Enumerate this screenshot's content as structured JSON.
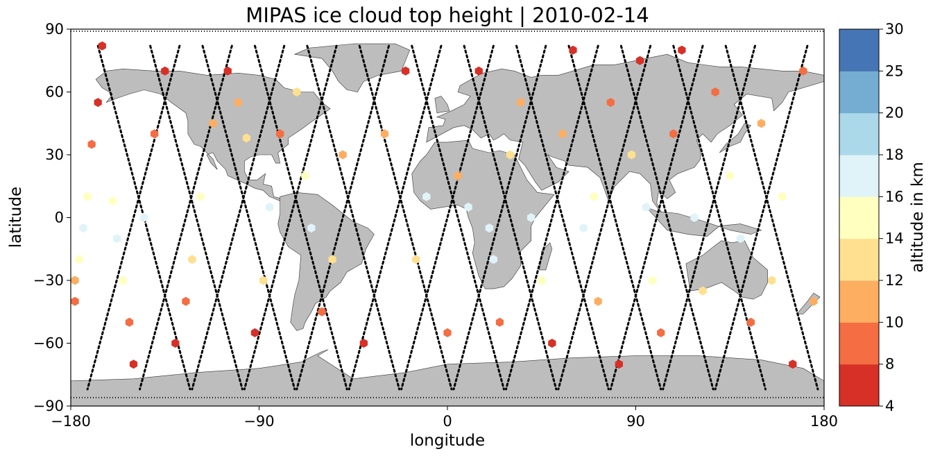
{
  "chart_data": {
    "type": "scatter",
    "title": "MIPAS ice cloud top height | 2010-02-14",
    "xlabel": "longitude",
    "ylabel": "latitude",
    "xlim": [
      -180,
      180
    ],
    "ylim": [
      -90,
      90
    ],
    "xticks": [
      -180,
      -90,
      0,
      90,
      180
    ],
    "yticks": [
      90,
      60,
      30,
      0,
      -30,
      -60,
      -90
    ],
    "xtick_labels": [
      "−180",
      "−90",
      "0",
      "90",
      "180"
    ],
    "ytick_labels": [
      "90",
      "60",
      "30",
      "0",
      "−30",
      "−60",
      "−90"
    ],
    "grid": false,
    "background_map": "world coastlines, land in grey",
    "land_color": "#bdbdbd",
    "track_marker_color": "#000000",
    "colorbar": {
      "label": "altitude in km",
      "boundaries": [
        4,
        8,
        10,
        12,
        14,
        16,
        18,
        20,
        25,
        30
      ],
      "tick_labels": [
        "30",
        "25",
        "20",
        "18",
        "16",
        "14",
        "12",
        "10",
        "8",
        "4"
      ],
      "colors": [
        "#a50026",
        "#d73027",
        "#f46d43",
        "#fdae61",
        "#fee090",
        "#ffffbf",
        "#e0f3f8",
        "#abd9e9",
        "#74add1",
        "#4575b4",
        "#313695"
      ]
    },
    "tracks": [
      {
        "lon_north": -128,
        "lon_south": -172,
        "descending": true
      },
      {
        "lon_north": -103,
        "lon_south": -147,
        "descending": true
      },
      {
        "lon_north": -78,
        "lon_south": -122,
        "descending": true
      },
      {
        "lon_north": -53,
        "lon_south": -97,
        "descending": true
      },
      {
        "lon_north": -28,
        "lon_south": -72,
        "descending": true
      },
      {
        "lon_north": -3,
        "lon_south": -47,
        "descending": true
      },
      {
        "lon_north": 22,
        "lon_south": -22,
        "descending": true
      },
      {
        "lon_north": 47,
        "lon_south": 3,
        "descending": true
      },
      {
        "lon_north": 72,
        "lon_south": 28,
        "descending": true
      },
      {
        "lon_north": 97,
        "lon_south": 53,
        "descending": true
      },
      {
        "lon_north": 122,
        "lon_south": 78,
        "descending": true
      },
      {
        "lon_north": 147,
        "lon_south": 103,
        "descending": true
      },
      {
        "lon_north": 172,
        "lon_south": 128,
        "descending": true
      },
      {
        "lon_north": -167,
        "lon_south": -123,
        "descending": false
      },
      {
        "lon_north": -142,
        "lon_south": -98,
        "descending": false
      },
      {
        "lon_north": -117,
        "lon_south": -73,
        "descending": false
      },
      {
        "lon_north": -92,
        "lon_south": -48,
        "descending": false
      },
      {
        "lon_north": -67,
        "lon_south": -23,
        "descending": false
      },
      {
        "lon_north": -42,
        "lon_south": 2,
        "descending": false
      },
      {
        "lon_north": -17,
        "lon_south": 27,
        "descending": false
      },
      {
        "lon_north": 8,
        "lon_south": 52,
        "descending": false
      },
      {
        "lon_north": 33,
        "lon_south": 77,
        "descending": false
      },
      {
        "lon_north": 58,
        "lon_south": 102,
        "descending": false
      },
      {
        "lon_north": 83,
        "lon_south": 127,
        "descending": false
      },
      {
        "lon_north": 108,
        "lon_south": 152,
        "descending": false
      },
      {
        "lon_north": 133,
        "lon_south": 177,
        "descending": false
      }
    ],
    "ice_cloud_heights_km": [
      {
        "lon": -178,
        "lat": -40,
        "h": 8
      },
      {
        "lon": -178,
        "lat": -30,
        "h": 11
      },
      {
        "lon": -176,
        "lat": -20,
        "h": 15
      },
      {
        "lon": -174,
        "lat": -5,
        "h": 16
      },
      {
        "lon": -172,
        "lat": 10,
        "h": 15
      },
      {
        "lon": -170,
        "lat": 35,
        "h": 9
      },
      {
        "lon": -167,
        "lat": 55,
        "h": 6
      },
      {
        "lon": -165,
        "lat": 82,
        "h": 6
      },
      {
        "lon": -160,
        "lat": 8,
        "h": 15
      },
      {
        "lon": -158,
        "lat": -10,
        "h": 17
      },
      {
        "lon": -155,
        "lat": -30,
        "h": 14
      },
      {
        "lon": -152,
        "lat": -50,
        "h": 8
      },
      {
        "lon": -150,
        "lat": -70,
        "h": 6
      },
      {
        "lon": -145,
        "lat": 0,
        "h": 16
      },
      {
        "lon": -140,
        "lat": 40,
        "h": 9
      },
      {
        "lon": -135,
        "lat": 70,
        "h": 6
      },
      {
        "lon": -130,
        "lat": -60,
        "h": 7
      },
      {
        "lon": -125,
        "lat": -40,
        "h": 9
      },
      {
        "lon": -122,
        "lat": -20,
        "h": 13
      },
      {
        "lon": -118,
        "lat": 10,
        "h": 15
      },
      {
        "lon": -112,
        "lat": 45,
        "h": 10
      },
      {
        "lon": -105,
        "lat": 70,
        "h": 6
      },
      {
        "lon": -100,
        "lat": 55,
        "h": 11
      },
      {
        "lon": -96,
        "lat": 38,
        "h": 13
      },
      {
        "lon": -92,
        "lat": -55,
        "h": 7
      },
      {
        "lon": -88,
        "lat": -30,
        "h": 12
      },
      {
        "lon": -85,
        "lat": 5,
        "h": 16
      },
      {
        "lon": -80,
        "lat": 40,
        "h": 9
      },
      {
        "lon": -72,
        "lat": 60,
        "h": 12
      },
      {
        "lon": -68,
        "lat": 20,
        "h": 14
      },
      {
        "lon": -65,
        "lat": -5,
        "h": 17
      },
      {
        "lon": -60,
        "lat": -45,
        "h": 8
      },
      {
        "lon": -55,
        "lat": -20,
        "h": 13
      },
      {
        "lon": -50,
        "lat": 30,
        "h": 11
      },
      {
        "lon": -40,
        "lat": -60,
        "h": 7
      },
      {
        "lon": -30,
        "lat": 40,
        "h": 10
      },
      {
        "lon": -20,
        "lat": 70,
        "h": 7
      },
      {
        "lon": -15,
        "lat": -20,
        "h": 12
      },
      {
        "lon": -10,
        "lat": 10,
        "h": 16
      },
      {
        "lon": 0,
        "lat": -55,
        "h": 8
      },
      {
        "lon": 5,
        "lat": 20,
        "h": 11
      },
      {
        "lon": 10,
        "lat": 5,
        "h": 17
      },
      {
        "lon": 15,
        "lat": 70,
        "h": 6
      },
      {
        "lon": 20,
        "lat": -5,
        "h": 17
      },
      {
        "lon": 22,
        "lat": -20,
        "h": 16
      },
      {
        "lon": 25,
        "lat": -50,
        "h": 8
      },
      {
        "lon": 30,
        "lat": 30,
        "h": 12
      },
      {
        "lon": 35,
        "lat": 55,
        "h": 10
      },
      {
        "lon": 40,
        "lat": 0,
        "h": 16
      },
      {
        "lon": 45,
        "lat": -30,
        "h": 14
      },
      {
        "lon": 50,
        "lat": -60,
        "h": 7
      },
      {
        "lon": 55,
        "lat": 40,
        "h": 10
      },
      {
        "lon": 60,
        "lat": 80,
        "h": 6
      },
      {
        "lon": 65,
        "lat": -5,
        "h": 17
      },
      {
        "lon": 70,
        "lat": 10,
        "h": 15
      },
      {
        "lon": 72,
        "lat": -40,
        "h": 11
      },
      {
        "lon": 78,
        "lat": 55,
        "h": 9
      },
      {
        "lon": 82,
        "lat": -70,
        "h": 6
      },
      {
        "lon": 88,
        "lat": 30,
        "h": 12
      },
      {
        "lon": 92,
        "lat": 75,
        "h": 6
      },
      {
        "lon": 95,
        "lat": 5,
        "h": 16
      },
      {
        "lon": 98,
        "lat": -30,
        "h": 14
      },
      {
        "lon": 102,
        "lat": -55,
        "h": 9
      },
      {
        "lon": 108,
        "lat": 40,
        "h": 9
      },
      {
        "lon": 112,
        "lat": 80,
        "h": 6
      },
      {
        "lon": 118,
        "lat": 0,
        "h": 16
      },
      {
        "lon": 122,
        "lat": -35,
        "h": 12
      },
      {
        "lon": 128,
        "lat": 60,
        "h": 8
      },
      {
        "lon": 135,
        "lat": 20,
        "h": 14
      },
      {
        "lon": 140,
        "lat": -10,
        "h": 16
      },
      {
        "lon": 145,
        "lat": -50,
        "h": 8
      },
      {
        "lon": 150,
        "lat": 45,
        "h": 10
      },
      {
        "lon": 155,
        "lat": -30,
        "h": 13
      },
      {
        "lon": 160,
        "lat": 10,
        "h": 15
      },
      {
        "lon": 165,
        "lat": -70,
        "h": 7
      },
      {
        "lon": 170,
        "lat": 70,
        "h": 8
      },
      {
        "lon": 175,
        "lat": -40,
        "h": 11
      }
    ]
  }
}
